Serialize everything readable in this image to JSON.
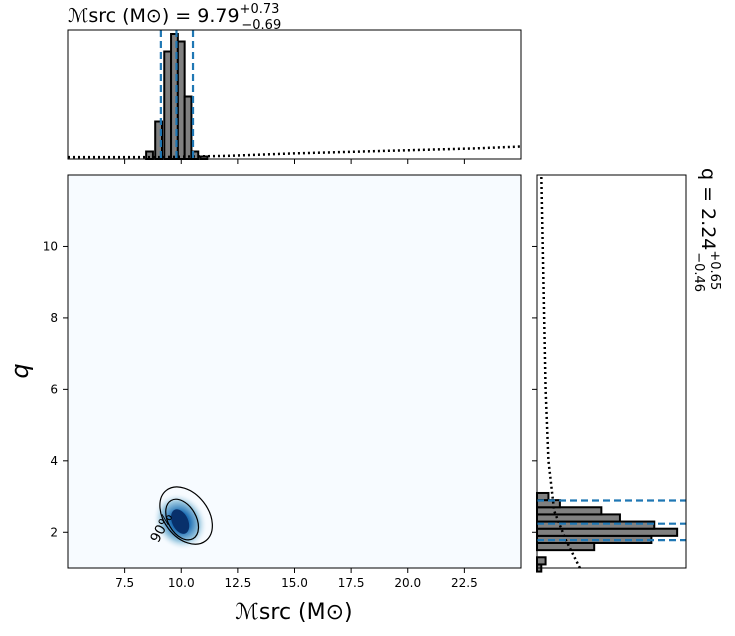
{
  "chart_data": {
    "type": "corner",
    "title_top": {
      "text": "ℳsrc (M⊙) = 9.79",
      "value": 9.79,
      "plus": "+0.73",
      "minus": "−0.69"
    },
    "title_right": {
      "text": "q = 2.24",
      "value": 2.24,
      "plus": "+0.65",
      "minus": "−0.46"
    },
    "xlabel": "ℳsrc (M⊙)",
    "ylabel": "q",
    "x_range": [
      5.0,
      25.0
    ],
    "y_range": [
      1.0,
      12.0
    ],
    "x_ticks": [
      "7.5",
      "10.0",
      "12.5",
      "15.0",
      "17.5",
      "20.0",
      "22.5"
    ],
    "y_ticks": [
      "2",
      "4",
      "6",
      "8",
      "10"
    ],
    "contour_label": "90%",
    "colors": {
      "accent": "#1f77b4",
      "hist_fill": "#808080",
      "heat_bg": "#f7fbff",
      "heat_peak": "#08306b"
    },
    "marginal_x": {
      "median": 9.79,
      "lower": 9.1,
      "upper": 10.52,
      "posterior": [
        {
          "x": 8.6,
          "h": 0.06
        },
        {
          "x": 9.0,
          "h": 0.3
        },
        {
          "x": 9.4,
          "h": 0.86
        },
        {
          "x": 9.7,
          "h": 1.0
        },
        {
          "x": 10.0,
          "h": 0.94
        },
        {
          "x": 10.3,
          "h": 0.5
        },
        {
          "x": 10.6,
          "h": 0.06
        },
        {
          "x": 11.0,
          "h": 0.02
        }
      ],
      "prior": [
        [
          5.0,
          0.015
        ],
        [
          9.0,
          0.015
        ],
        [
          12.0,
          0.025
        ],
        [
          15.0,
          0.045
        ],
        [
          18.0,
          0.06
        ],
        [
          21.0,
          0.075
        ],
        [
          23.0,
          0.085
        ],
        [
          25.0,
          0.1
        ]
      ]
    },
    "marginal_y": {
      "median": 2.24,
      "lower": 1.78,
      "upper": 2.89,
      "posterior": [
        {
          "y": 1.0,
          "w": 0.03
        },
        {
          "y": 1.2,
          "w": 0.06
        },
        {
          "y": 1.6,
          "w": 0.4
        },
        {
          "y": 1.8,
          "w": 0.8
        },
        {
          "y": 2.0,
          "w": 0.98
        },
        {
          "y": 2.2,
          "w": 0.82
        },
        {
          "y": 2.4,
          "w": 0.58
        },
        {
          "y": 2.6,
          "w": 0.45
        },
        {
          "y": 2.8,
          "w": 0.16
        },
        {
          "y": 3.0,
          "w": 0.08
        }
      ],
      "prior": [
        [
          1.0,
          0.3
        ],
        [
          1.8,
          0.2
        ],
        [
          2.6,
          0.12
        ],
        [
          4.0,
          0.08
        ],
        [
          6.0,
          0.06
        ],
        [
          8.0,
          0.05
        ],
        [
          10.0,
          0.04
        ],
        [
          12.0,
          0.03
        ]
      ]
    },
    "joint_peak": {
      "x": 9.95,
      "y": 2.3
    }
  }
}
